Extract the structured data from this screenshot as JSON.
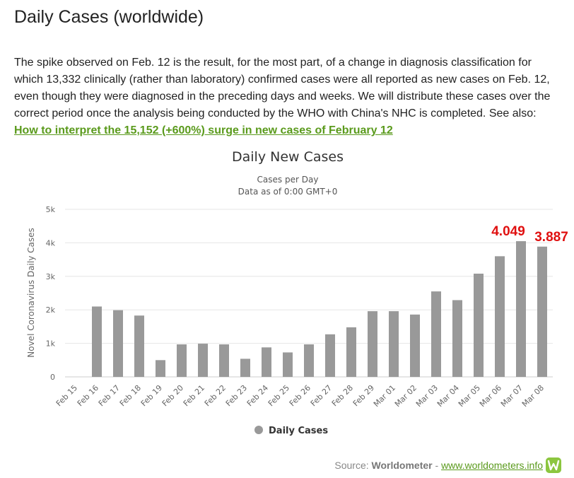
{
  "page": {
    "heading": "Daily Cases (worldwide)",
    "note_text": "The spike observed on Feb. 12 is the result, for the most part, of a change in diagnosis classification for which 13,332 clinically (rather than laboratory) confirmed cases were all reported as new cases on Feb. 12, even though they were diagnosed in the preceding days and weeks. We will distribute these cases over the correct period once the analysis being conducted by the WHO with China's NHC is completed. See also: ",
    "note_link": "How to interpret the 15,152 (+600%) surge in new cases of February 12",
    "source_prefix": "Source: ",
    "source_name": "Worldometer",
    "source_sep": " - ",
    "source_url": "www.worldometers.info",
    "logo_letter": "W",
    "colors": {
      "link": "#5a9a1c",
      "bar": "#999999",
      "annotation": "#e01010",
      "logo": "#8cc63f"
    }
  },
  "chart_data": {
    "type": "bar",
    "title": "Daily New Cases",
    "subtitle_lines": [
      "Cases per Day",
      "Data as of 0:00 GMT+0"
    ],
    "ylabel": "Novel Coronavirus Daily Cases",
    "ylim": [
      0,
      5000
    ],
    "yticks": [
      0,
      1000,
      2000,
      3000,
      4000,
      5000
    ],
    "ytick_labels": [
      "0",
      "1k",
      "2k",
      "3k",
      "4k",
      "5k"
    ],
    "categories": [
      "Feb 15",
      "Feb 16",
      "Feb 17",
      "Feb 18",
      "Feb 19",
      "Feb 20",
      "Feb 21",
      "Feb 22",
      "Feb 23",
      "Feb 24",
      "Feb 25",
      "Feb 26",
      "Feb 27",
      "Feb 28",
      "Feb 29",
      "Mar 01",
      "Mar 02",
      "Mar 03",
      "Mar 04",
      "Mar 05",
      "Mar 06",
      "Mar 07",
      "Mar 08"
    ],
    "series": [
      {
        "name": "Daily Cases",
        "values": [
          null,
          2100,
          1990,
          1830,
          500,
          970,
          990,
          970,
          540,
          880,
          730,
          970,
          1270,
          1480,
          1960,
          1960,
          1860,
          2550,
          2290,
          3080,
          3600,
          4049,
          3887
        ]
      }
    ],
    "annotations": [
      {
        "category": "Mar 07",
        "text": "4.049"
      },
      {
        "category": "Mar 08",
        "text": "3.887"
      }
    ],
    "grid": true,
    "legend": "bottom-center"
  }
}
